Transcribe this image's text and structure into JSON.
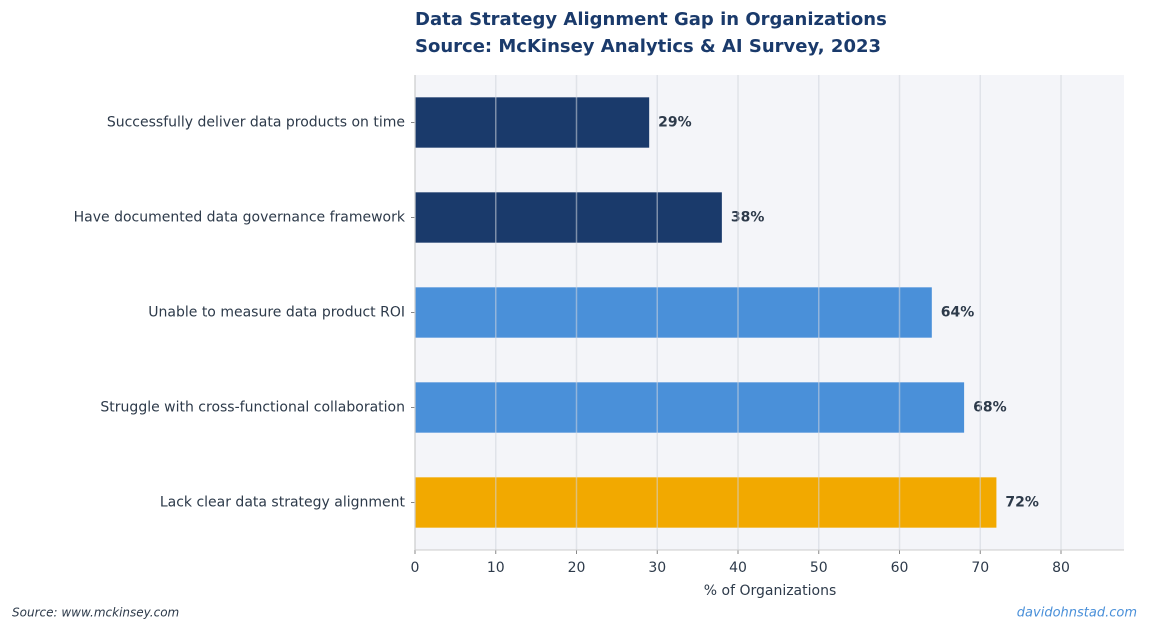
{
  "chart_data": {
    "type": "barh",
    "title": "Data Strategy Alignment Gap in Organizations",
    "subtitle": "Source: McKinsey Analytics & AI Survey, 2023",
    "x_label": "% of Organizations",
    "categories": [
      "Successfully deliver data products on time",
      "Have documented data governance framework",
      "Unable to measure data product ROI",
      "Struggle with cross-functional collaboration",
      "Lack clear data strategy alignment"
    ],
    "values": [
      29,
      38,
      64,
      68,
      72
    ],
    "value_labels": [
      "29%",
      "38%",
      "64%",
      "68%",
      "72%"
    ],
    "colors": [
      "#1a3a6b",
      "#1a3a6b",
      "#4a90d9",
      "#4a90d9",
      "#f2a900"
    ],
    "xlim": [
      0,
      87.8
    ],
    "xticks": [
      0,
      10,
      20,
      30,
      40,
      50,
      60,
      70,
      80
    ],
    "grid": true
  },
  "footer": {
    "source": "Source: www.mckinsey.com",
    "credit": "davidohnstad.com"
  }
}
